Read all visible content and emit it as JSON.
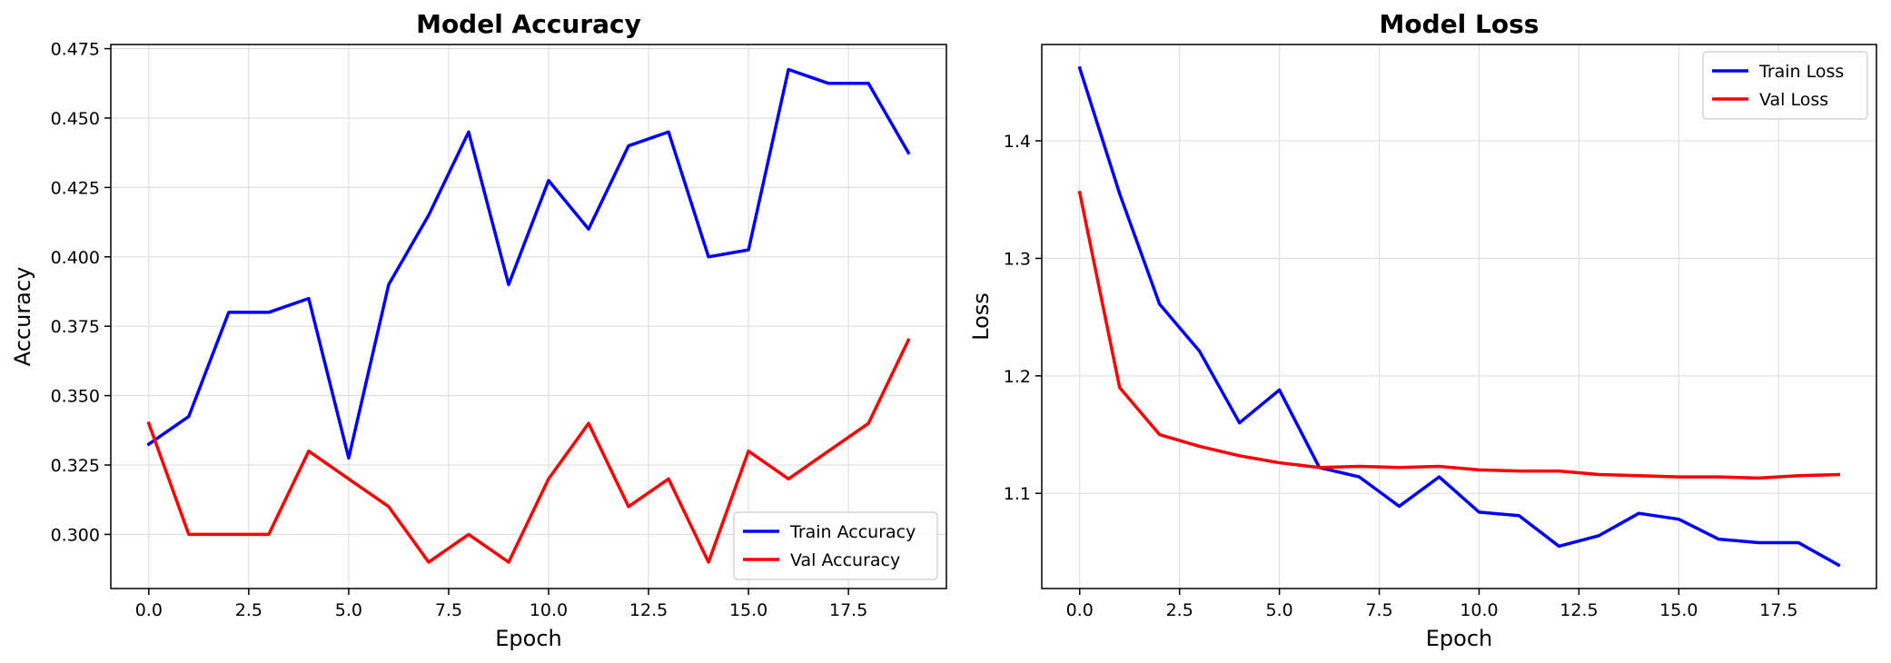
{
  "chart_data": [
    {
      "type": "line",
      "title": "Model Accuracy",
      "xlabel": "Epoch",
      "ylabel": "Accuracy",
      "xlim": [
        -0.95,
        19.95
      ],
      "ylim": [
        0.2805,
        0.4765
      ],
      "xticks": [
        0.0,
        2.5,
        5.0,
        7.5,
        10.0,
        12.5,
        15.0,
        17.5
      ],
      "xtick_labels": [
        "0.0",
        "2.5",
        "5.0",
        "7.5",
        "10.0",
        "12.5",
        "15.0",
        "17.5"
      ],
      "yticks": [
        0.3,
        0.325,
        0.35,
        0.375,
        0.4,
        0.425,
        0.45,
        0.475
      ],
      "ytick_labels": [
        "0.300",
        "0.325",
        "0.350",
        "0.375",
        "0.400",
        "0.425",
        "0.450",
        "0.475"
      ],
      "grid": true,
      "legend_position": "lower-right",
      "x": [
        0,
        1,
        2,
        3,
        4,
        5,
        6,
        7,
        8,
        9,
        10,
        11,
        12,
        13,
        14,
        15,
        16,
        17,
        18,
        19
      ],
      "series": [
        {
          "name": "Train Accuracy",
          "color": "#0000ff",
          "values": [
            0.3325,
            0.3425,
            0.38,
            0.38,
            0.385,
            0.3275,
            0.39,
            0.415,
            0.445,
            0.39,
            0.4275,
            0.41,
            0.44,
            0.445,
            0.4,
            0.4025,
            0.4675,
            0.4625,
            0.4625,
            0.4375
          ]
        },
        {
          "name": "Val Accuracy",
          "color": "#ff0000",
          "values": [
            0.34,
            0.3,
            0.3,
            0.3,
            0.33,
            0.32,
            0.31,
            0.29,
            0.3,
            0.29,
            0.32,
            0.34,
            0.31,
            0.32,
            0.29,
            0.33,
            0.32,
            0.33,
            0.34,
            0.37
          ]
        }
      ]
    },
    {
      "type": "line",
      "title": "Model Loss",
      "xlabel": "Epoch",
      "ylabel": "Loss",
      "xlim": [
        -0.95,
        19.95
      ],
      "ylim": [
        1.019,
        1.482
      ],
      "xticks": [
        0.0,
        2.5,
        5.0,
        7.5,
        10.0,
        12.5,
        15.0,
        17.5
      ],
      "xtick_labels": [
        "0.0",
        "2.5",
        "5.0",
        "7.5",
        "10.0",
        "12.5",
        "15.0",
        "17.5"
      ],
      "yticks": [
        1.1,
        1.2,
        1.3,
        1.4
      ],
      "ytick_labels": [
        "1.1",
        "1.2",
        "1.3",
        "1.4"
      ],
      "grid": true,
      "legend_position": "upper-right",
      "x": [
        0,
        1,
        2,
        3,
        4,
        5,
        6,
        7,
        8,
        9,
        10,
        11,
        12,
        13,
        14,
        15,
        16,
        17,
        18,
        19
      ],
      "series": [
        {
          "name": "Train Loss",
          "color": "#0000ff",
          "values": [
            1.462,
            1.355,
            1.261,
            1.221,
            1.16,
            1.188,
            1.122,
            1.114,
            1.089,
            1.114,
            1.084,
            1.081,
            1.055,
            1.064,
            1.083,
            1.078,
            1.061,
            1.058,
            1.058,
            1.039
          ]
        },
        {
          "name": "Val Loss",
          "color": "#ff0000",
          "values": [
            1.356,
            1.19,
            1.15,
            1.14,
            1.132,
            1.126,
            1.122,
            1.123,
            1.122,
            1.123,
            1.12,
            1.119,
            1.119,
            1.116,
            1.115,
            1.114,
            1.114,
            1.113,
            1.115,
            1.116
          ]
        }
      ]
    }
  ]
}
